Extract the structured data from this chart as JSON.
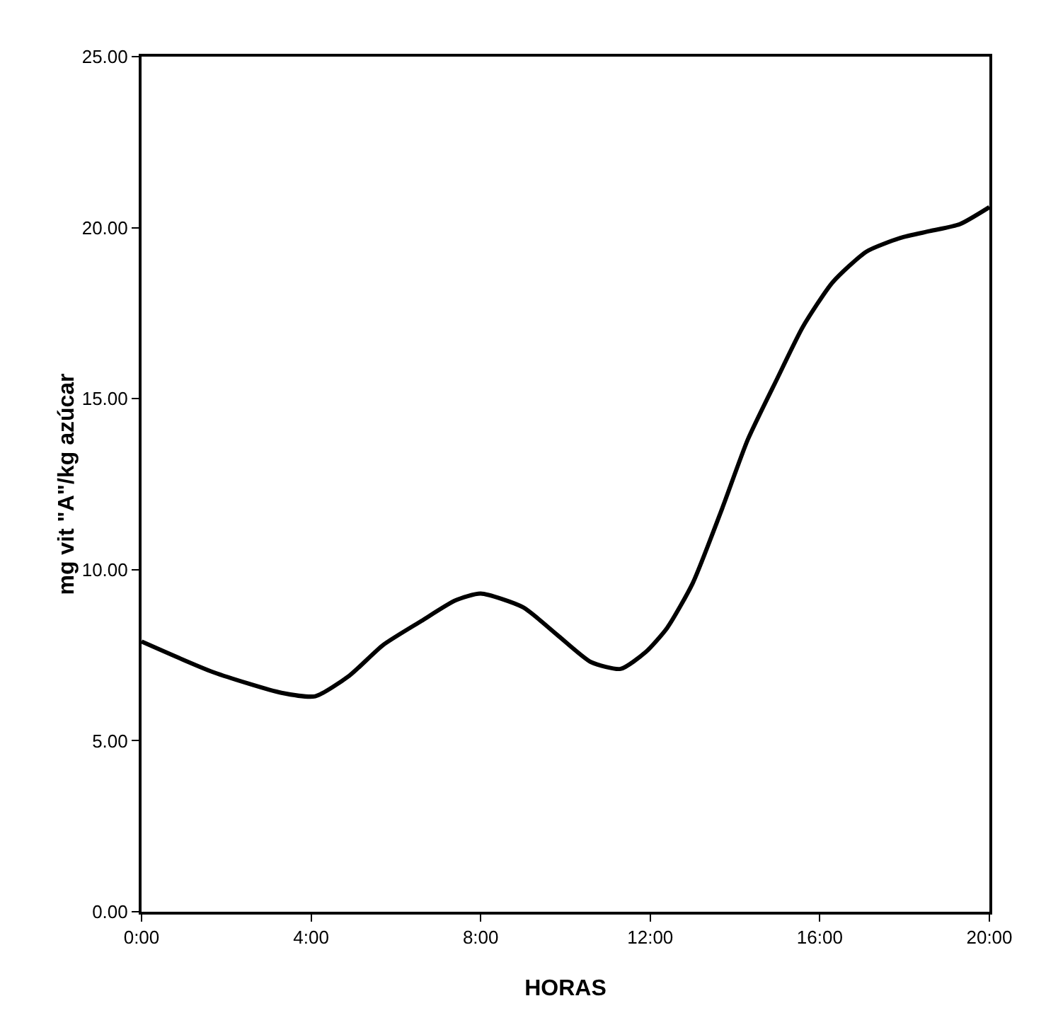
{
  "chart_data": {
    "type": "line",
    "xlabel": "HORAS",
    "ylabel": "mg vit \"A\"/kg azúcar",
    "x": [
      0,
      1.7,
      3.3,
      4.1,
      4.9,
      5.7,
      6.6,
      7.4,
      8.0,
      9.0,
      9.8,
      10.6,
      11.3,
      11.9,
      12.4,
      13.0,
      13.7,
      14.3,
      15.0,
      15.6,
      16.3,
      17.1,
      17.9,
      18.6,
      19.3,
      20
    ],
    "series": [
      {
        "color": "#000000",
        "values": [
          7.9,
          7.0,
          6.4,
          6.3,
          6.9,
          7.8,
          8.5,
          9.1,
          9.3,
          8.9,
          8.1,
          7.3,
          7.1,
          7.6,
          8.3,
          9.6,
          11.8,
          13.8,
          15.6,
          17.1,
          18.4,
          19.3,
          19.7,
          19.9,
          20.1,
          20.6
        ]
      }
    ],
    "xlim": [
      0,
      20
    ],
    "xticks": [
      {
        "value": 0,
        "label": "0:00"
      },
      {
        "value": 4,
        "label": "4:00"
      },
      {
        "value": 8,
        "label": "8:00"
      },
      {
        "value": 12,
        "label": "12:00"
      },
      {
        "value": 16,
        "label": "16:00"
      },
      {
        "value": 20,
        "label": "20:00"
      }
    ],
    "ylim": [
      0,
      25
    ],
    "yticks": [
      {
        "value": 0,
        "label": "0.00"
      },
      {
        "value": 5,
        "label": "5.00"
      },
      {
        "value": 10,
        "label": "10.00"
      },
      {
        "value": 15,
        "label": "15.00"
      },
      {
        "value": 20,
        "label": "20.00"
      },
      {
        "value": 25,
        "label": "25.00"
      }
    ],
    "line_style": "solid"
  }
}
